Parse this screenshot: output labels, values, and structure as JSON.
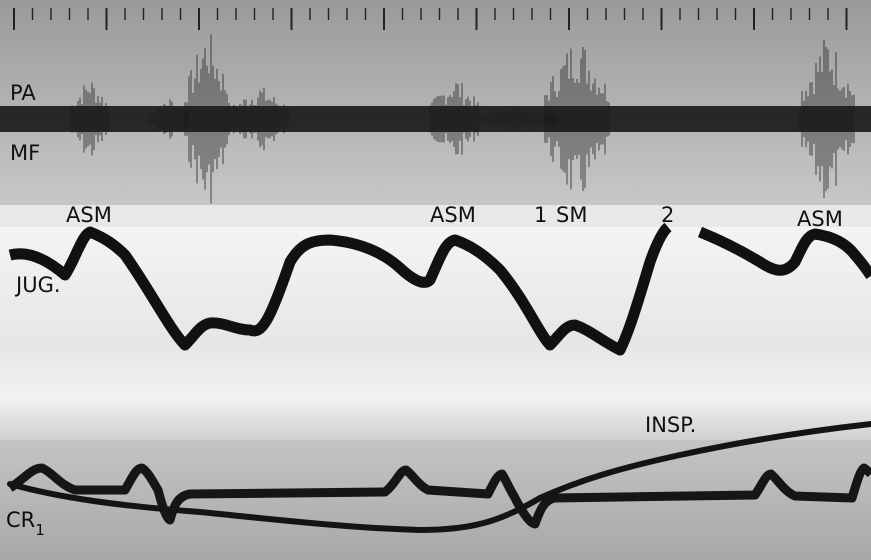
{
  "labels": {
    "pa": "PA",
    "mf": "MF",
    "asm_1": "ASM",
    "asm_2": "ASM",
    "one": "1",
    "sm": "SM",
    "two": "2",
    "asm_3": "ASM",
    "jug": "JUG.",
    "insp": "INSP.",
    "cr": "CR",
    "cr_sub": "1"
  }
}
